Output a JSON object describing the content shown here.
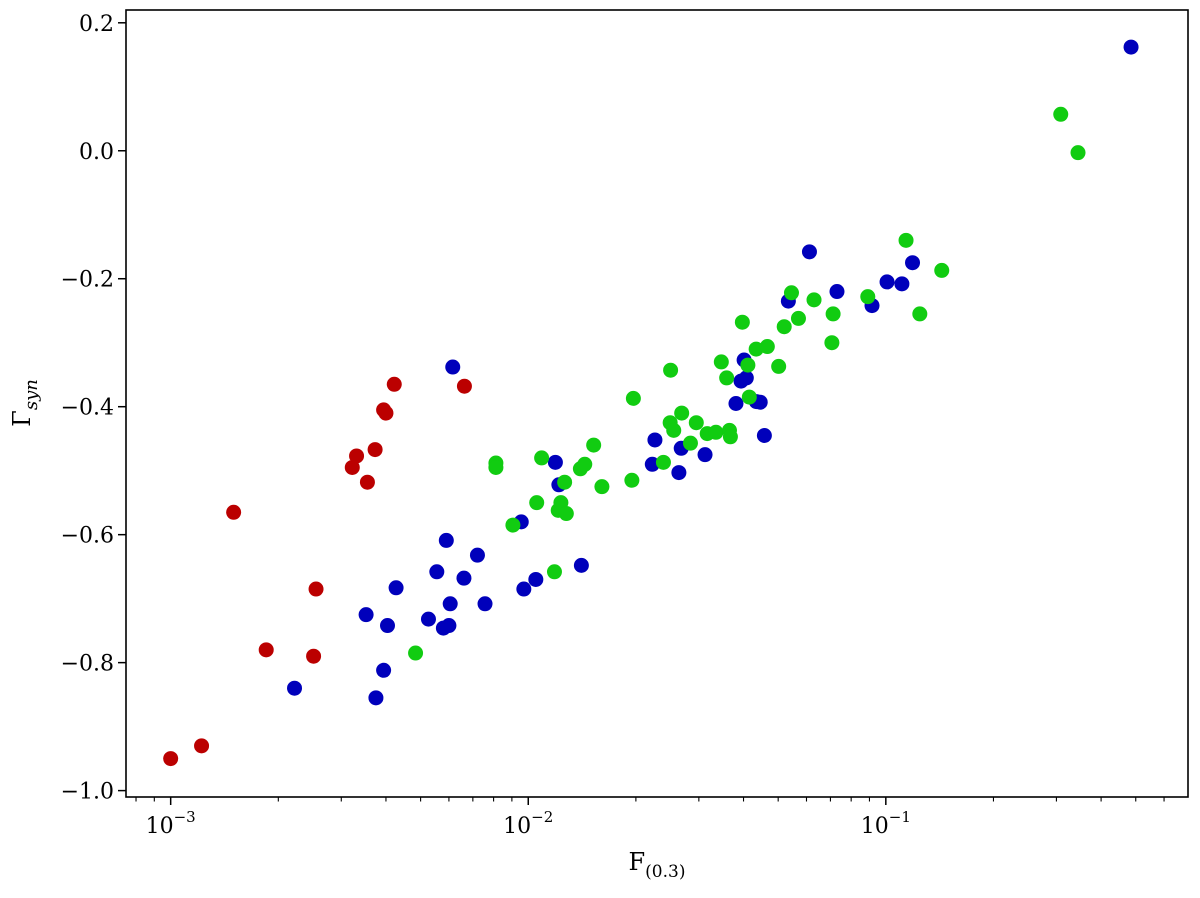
{
  "chart_data": {
    "type": "scatter",
    "title": "",
    "xlabel": {
      "main": "F",
      "sub": "(0.3)"
    },
    "ylabel": {
      "main": "Γ",
      "sub": "syn"
    },
    "xscale": "log",
    "xlim": [
      0.00075,
      0.7
    ],
    "ylim": [
      -1.01,
      0.22
    ],
    "grid": false,
    "x_ticks": [
      {
        "value": 0.001,
        "base": "10",
        "exp": "−3"
      },
      {
        "value": 0.01,
        "base": "10",
        "exp": "−2"
      },
      {
        "value": 0.1,
        "base": "10",
        "exp": "−1"
      }
    ],
    "y_ticks": [
      {
        "value": 0.2,
        "label": "0.2"
      },
      {
        "value": 0.0,
        "label": "0.0"
      },
      {
        "value": -0.2,
        "label": "−0.2"
      },
      {
        "value": -0.4,
        "label": "−0.4"
      },
      {
        "value": -0.6,
        "label": "−0.6"
      },
      {
        "value": -0.8,
        "label": "−0.8"
      },
      {
        "value": -1.0,
        "label": "−1.0"
      }
    ],
    "series": [
      {
        "color": "#bb0000",
        "points": [
          [
            0.001,
            -0.95
          ],
          [
            0.00122,
            -0.93
          ],
          [
            0.0015,
            -0.565
          ],
          [
            0.00185,
            -0.78
          ],
          [
            0.00251,
            -0.79
          ],
          [
            0.00255,
            -0.685
          ],
          [
            0.00322,
            -0.495
          ],
          [
            0.00331,
            -0.477
          ],
          [
            0.00355,
            -0.518
          ],
          [
            0.00373,
            -0.467
          ],
          [
            0.00394,
            -0.405
          ],
          [
            0.004,
            -0.41
          ],
          [
            0.00422,
            -0.365
          ],
          [
            0.00663,
            -0.368
          ]
        ]
      },
      {
        "color": "#0000bb",
        "points": [
          [
            0.00222,
            -0.84
          ],
          [
            0.00352,
            -0.725
          ],
          [
            0.00375,
            -0.855
          ],
          [
            0.00394,
            -0.812
          ],
          [
            0.00404,
            -0.742
          ],
          [
            0.00427,
            -0.683
          ],
          [
            0.00526,
            -0.732
          ],
          [
            0.00555,
            -0.658
          ],
          [
            0.00579,
            -0.746
          ],
          [
            0.0059,
            -0.609
          ],
          [
            0.006,
            -0.742
          ],
          [
            0.00605,
            -0.708
          ],
          [
            0.00615,
            -0.338
          ],
          [
            0.00661,
            -0.668
          ],
          [
            0.00721,
            -0.632
          ],
          [
            0.00757,
            -0.708
          ],
          [
            0.00956,
            -0.58
          ],
          [
            0.00972,
            -0.685
          ],
          [
            0.0105,
            -0.67
          ],
          [
            0.01191,
            -0.487
          ],
          [
            0.01218,
            -0.522
          ],
          [
            0.01408,
            -0.648
          ],
          [
            0.02223,
            -0.49
          ],
          [
            0.02261,
            -0.452
          ],
          [
            0.02638,
            -0.503
          ],
          [
            0.02678,
            -0.465
          ],
          [
            0.03122,
            -0.475
          ],
          [
            0.0381,
            -0.395
          ],
          [
            0.03937,
            -0.36
          ],
          [
            0.04015,
            -0.327
          ],
          [
            0.04073,
            -0.355
          ],
          [
            0.04345,
            -0.392
          ],
          [
            0.04454,
            -0.393
          ],
          [
            0.04575,
            -0.445
          ],
          [
            0.05339,
            -0.235
          ],
          [
            0.06116,
            -0.158
          ],
          [
            0.07302,
            -0.22
          ],
          [
            0.09149,
            -0.242
          ],
          [
            0.10079,
            -0.205
          ],
          [
            0.11091,
            -0.208
          ],
          [
            0.11876,
            -0.175
          ],
          [
            0.48512,
            0.162
          ]
        ]
      },
      {
        "color": "#11cc11",
        "points": [
          [
            0.00484,
            -0.785
          ],
          [
            0.00812,
            -0.488
          ],
          [
            0.00812,
            -0.495
          ],
          [
            0.00906,
            -0.585
          ],
          [
            0.01056,
            -0.55
          ],
          [
            0.0109,
            -0.48
          ],
          [
            0.01184,
            -0.658
          ],
          [
            0.01213,
            -0.562
          ],
          [
            0.01234,
            -0.55
          ],
          [
            0.01264,
            -0.518
          ],
          [
            0.01278,
            -0.567
          ],
          [
            0.01399,
            -0.497
          ],
          [
            0.01439,
            -0.49
          ],
          [
            0.01524,
            -0.46
          ],
          [
            0.01607,
            -0.525
          ],
          [
            0.01949,
            -0.515
          ],
          [
            0.01968,
            -0.387
          ],
          [
            0.02388,
            -0.487
          ],
          [
            0.02494,
            -0.425
          ],
          [
            0.02501,
            -0.343
          ],
          [
            0.02552,
            -0.437
          ],
          [
            0.02686,
            -0.41
          ],
          [
            0.02842,
            -0.457
          ],
          [
            0.02951,
            -0.425
          ],
          [
            0.03166,
            -0.442
          ],
          [
            0.03349,
            -0.44
          ],
          [
            0.03467,
            -0.33
          ],
          [
            0.03588,
            -0.355
          ],
          [
            0.03654,
            -0.437
          ],
          [
            0.03676,
            -0.447
          ],
          [
            0.0397,
            -0.268
          ],
          [
            0.04114,
            -0.335
          ],
          [
            0.04152,
            -0.385
          ],
          [
            0.04339,
            -0.31
          ],
          [
            0.04663,
            -0.306
          ],
          [
            0.05016,
            -0.337
          ],
          [
            0.05198,
            -0.275
          ],
          [
            0.05447,
            -0.222
          ],
          [
            0.05698,
            -0.262
          ],
          [
            0.06298,
            -0.233
          ],
          [
            0.07066,
            -0.3
          ],
          [
            0.07122,
            -0.255
          ],
          [
            0.08904,
            -0.228
          ],
          [
            0.11391,
            -0.14
          ],
          [
            0.12448,
            -0.255
          ],
          [
            0.14336,
            -0.187
          ],
          [
            0.30848,
            0.057
          ],
          [
            0.34474,
            -0.003
          ]
        ]
      }
    ]
  }
}
